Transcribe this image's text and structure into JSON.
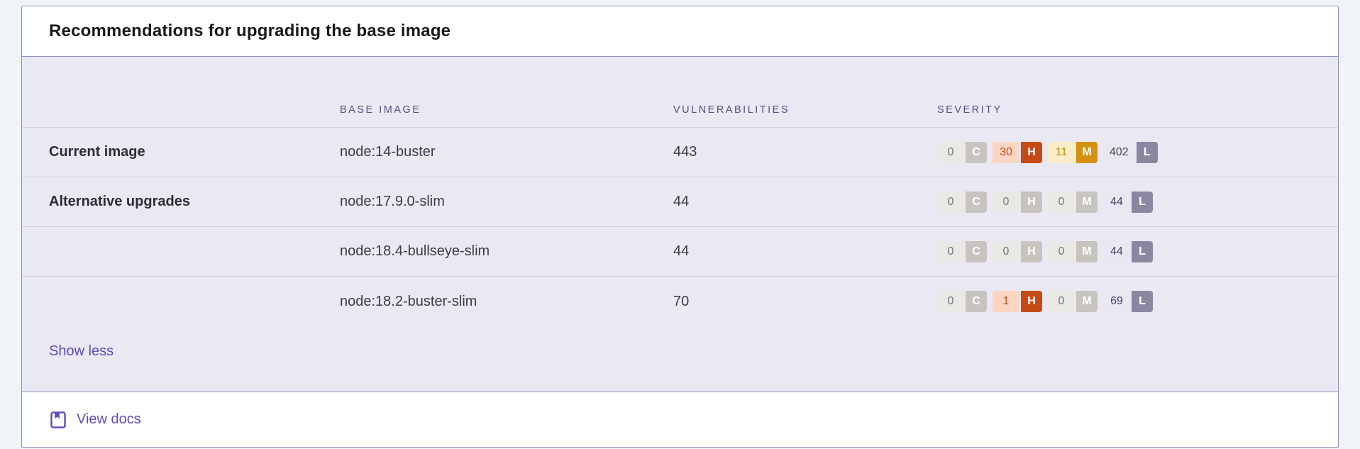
{
  "header": {
    "title": "Recommendations for upgrading the base image"
  },
  "table": {
    "column_headers": {
      "base_image": "BASE IMAGE",
      "vulnerabilities": "VULNERABILITIES",
      "severity": "SEVERITY"
    },
    "rows": [
      {
        "label": "Current image",
        "base_image": "node:14-buster",
        "vulnerabilities": "443",
        "severity": [
          {
            "letter": "C",
            "count": "0"
          },
          {
            "letter": "H",
            "count": "30"
          },
          {
            "letter": "M",
            "count": "11"
          },
          {
            "letter": "L",
            "count": "402"
          }
        ]
      },
      {
        "label": "Alternative upgrades",
        "base_image": "node:17.9.0-slim",
        "vulnerabilities": "44",
        "severity": [
          {
            "letter": "C",
            "count": "0"
          },
          {
            "letter": "H",
            "count": "0"
          },
          {
            "letter": "M",
            "count": "0"
          },
          {
            "letter": "L",
            "count": "44"
          }
        ]
      },
      {
        "label": "",
        "base_image": "node:18.4-bullseye-slim",
        "vulnerabilities": "44",
        "severity": [
          {
            "letter": "C",
            "count": "0"
          },
          {
            "letter": "H",
            "count": "0"
          },
          {
            "letter": "M",
            "count": "0"
          },
          {
            "letter": "L",
            "count": "44"
          }
        ]
      },
      {
        "label": "",
        "base_image": "node:18.2-buster-slim",
        "vulnerabilities": "70",
        "severity": [
          {
            "letter": "C",
            "count": "0"
          },
          {
            "letter": "H",
            "count": "1"
          },
          {
            "letter": "M",
            "count": "0"
          },
          {
            "letter": "L",
            "count": "69"
          }
        ]
      }
    ],
    "show_less_label": "Show less"
  },
  "footer": {
    "view_docs_label": "View docs",
    "icon": "book-bookmark-icon"
  },
  "colors": {
    "page_bg": "#eff4f9",
    "card_border": "#908cbf",
    "panel_bg": "#eae8f3",
    "link": "#584ec1",
    "severity": {
      "inactive": {
        "count_bg": "#e9e8e5",
        "count_text": "#787674",
        "letter_bg": "#c7c4bf",
        "letter_text": "#ffffff"
      },
      "C": {
        "count_bg": "#fbd3cd",
        "count_text": "#b5403a",
        "letter_bg": "#bf4640",
        "letter_text": "#ffffff"
      },
      "H": {
        "count_bg": "#fcd6c3",
        "count_text": "#bc4b19",
        "letter_bg": "#c54a14",
        "letter_text": "#ffffff"
      },
      "M": {
        "count_bg": "#fcecc9",
        "count_text": "#c08c10",
        "letter_bg": "#d29110",
        "letter_text": "#ffffff"
      },
      "L": {
        "count_bg": "#e9e7f1",
        "count_text": "#454161",
        "letter_bg": "#8b87a2",
        "letter_text": "#ffffff"
      }
    }
  }
}
